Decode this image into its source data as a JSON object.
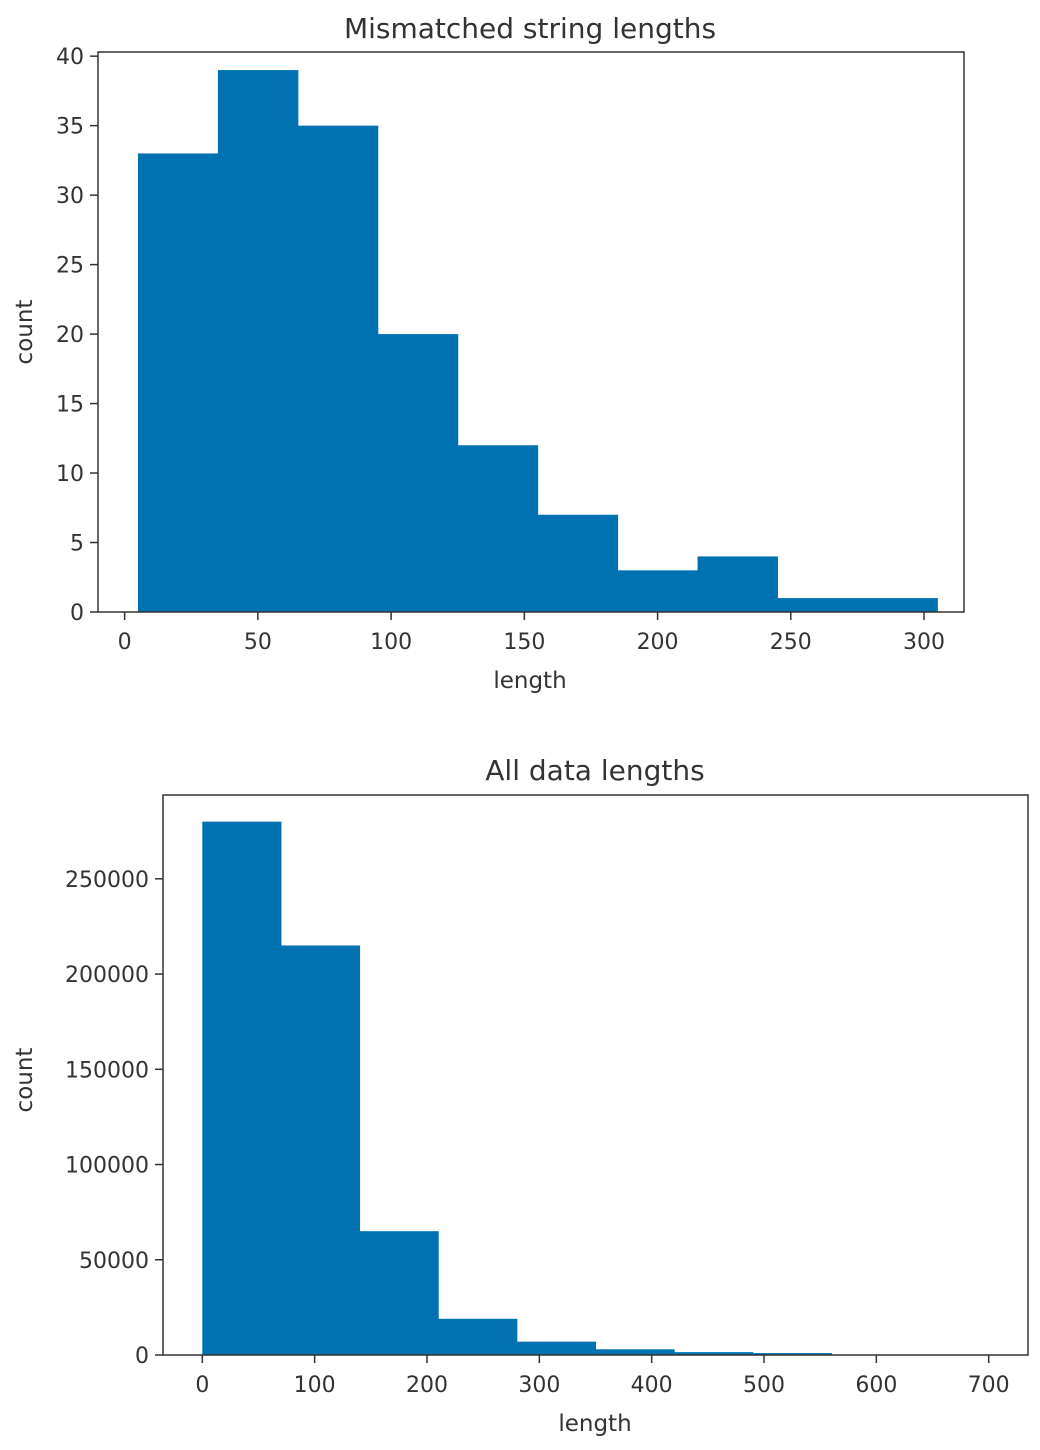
{
  "chart_data": [
    {
      "type": "bar",
      "title": "Mismatched string lengths",
      "xlabel": "length",
      "ylabel": "count",
      "xlim": [
        -10,
        315
      ],
      "ylim": [
        0,
        40.3
      ],
      "xticks": [
        0,
        50,
        100,
        150,
        200,
        250,
        300
      ],
      "xtick_labels": [
        "0",
        "50",
        "100",
        "150",
        "200",
        "250",
        "300"
      ],
      "yticks": [
        0,
        5,
        10,
        15,
        20,
        25,
        30,
        35,
        40
      ],
      "ytick_labels": [
        "0",
        "5",
        "10",
        "15",
        "20",
        "25",
        "30",
        "35",
        "40"
      ],
      "bin_edges": [
        5,
        35,
        65,
        95,
        125,
        155,
        185,
        215,
        245,
        275,
        305
      ],
      "values": [
        33,
        39,
        35,
        20,
        12,
        7,
        3,
        4,
        1,
        1
      ],
      "color": "#0072b2",
      "grid": false
    },
    {
      "type": "bar",
      "title": "All data lengths",
      "xlabel": "length",
      "ylabel": "count",
      "xlim": [
        -35,
        735
      ],
      "ylim": [
        0,
        294000
      ],
      "xticks": [
        0,
        100,
        200,
        300,
        400,
        500,
        600,
        700
      ],
      "xtick_labels": [
        "0",
        "100",
        "200",
        "300",
        "400",
        "500",
        "600",
        "700"
      ],
      "yticks": [
        0,
        50000,
        100000,
        150000,
        200000,
        250000
      ],
      "ytick_labels": [
        "0",
        "50000",
        "100000",
        "150000",
        "200000",
        "250000"
      ],
      "bin_edges": [
        0,
        70,
        140,
        210,
        280,
        350,
        420,
        490,
        560,
        630,
        700
      ],
      "values": [
        280000,
        215000,
        65000,
        19000,
        7000,
        3000,
        1500,
        1000,
        0,
        0
      ],
      "color": "#0072b2",
      "grid": false
    }
  ]
}
